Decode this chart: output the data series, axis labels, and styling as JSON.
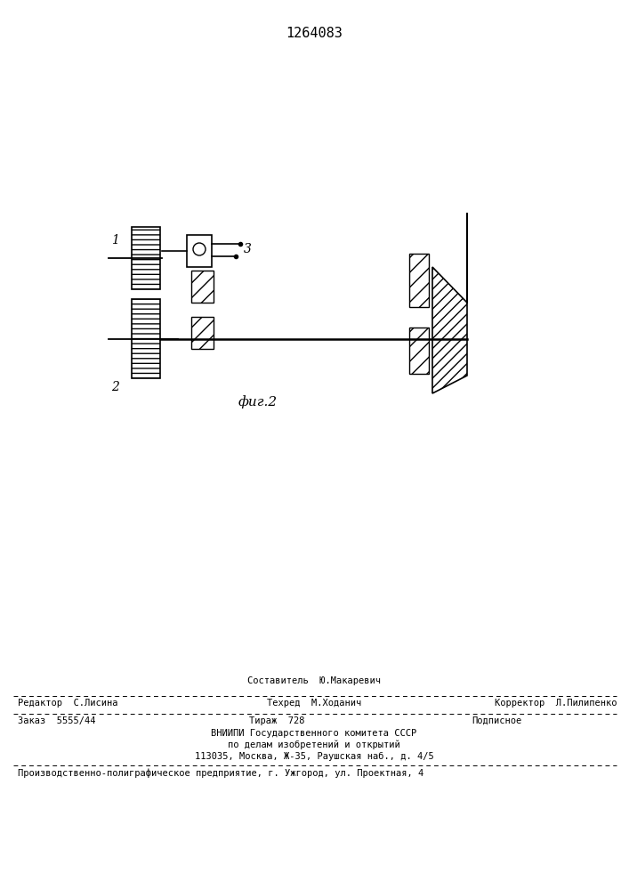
{
  "title": "1264083",
  "background_color": "#ffffff",
  "fig_caption": "фиг.2",
  "footer": {
    "sestavitel": "Составитель  Ю.Макаревич",
    "row1_left": "Редактор  С.Лисина",
    "row1_center": "Техред  М.Ходанич",
    "row1_right": "Корректор  Л.Пилипенко",
    "row2_left": "Заказ  5555/44",
    "row2_center": "Тираж  728",
    "row2_right": "Подписное",
    "row3": "ВНИИПИ Государственного комитета СССР",
    "row4": "по делам изобретений и открытий",
    "row5": "113035, Москва, Ж-35, Раушская наб., д. 4/5",
    "row6": "Производственно-полиграфическое предприятие, г. Ужгород, ул. Проектная, 4"
  },
  "labels": {
    "l1": "1",
    "l2": "2",
    "l3": "3"
  }
}
